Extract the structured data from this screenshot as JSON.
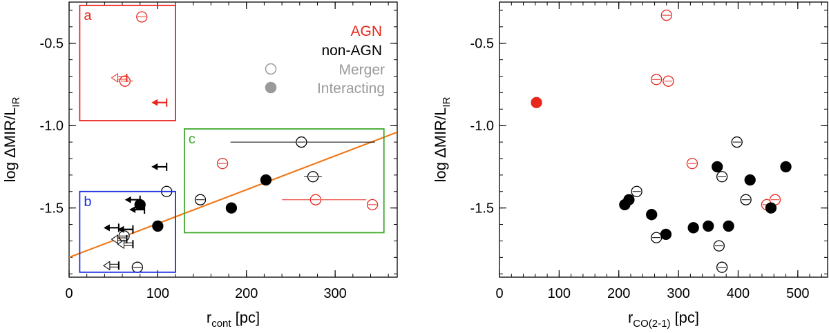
{
  "colors": {
    "agn": "#e8261c",
    "nonagn": "#000000",
    "legend_gray": "#9a9a9a",
    "fit_line": "#f07a1c",
    "box_a": "#e8261c",
    "box_b": "#1c2ee0",
    "box_c": "#3fa92b"
  },
  "chart_data": [
    {
      "type": "scatter",
      "panel": "left",
      "xlabel": {
        "main": "r",
        "sub": "cont",
        "unit": " [pc]"
      },
      "ylabel": {
        "main": "log ΔMIR/L",
        "sub": "IR"
      },
      "xlim": [
        0,
        370
      ],
      "ylim": [
        -1.92,
        -0.25
      ],
      "xticks": [
        0,
        100,
        200,
        300
      ],
      "xtick_labels": [
        "0",
        "100",
        "200",
        "300"
      ],
      "yticks": [
        -0.5,
        -1.0,
        -1.5
      ],
      "ytick_labels": [
        "-0.5",
        "-1.0",
        "-1.5"
      ],
      "legend": {
        "agn_label": "AGN",
        "nonagn_label": "non-AGN",
        "merger_label": "Merger",
        "interacting_label": "Interacting"
      },
      "fit_line": {
        "x": [
          0,
          370
        ],
        "y": [
          -1.8,
          -1.04
        ]
      },
      "boxes": [
        {
          "label": "a",
          "x": [
            12,
            120
          ],
          "y": [
            -0.97,
            -0.27
          ],
          "color": "box_a"
        },
        {
          "label": "b",
          "x": [
            12,
            120
          ],
          "y": [
            -1.89,
            -1.4
          ],
          "color": "box_b"
        },
        {
          "label": "c",
          "x": [
            130,
            355
          ],
          "y": [
            -1.65,
            -1.02
          ],
          "color": "box_c"
        }
      ],
      "points": [
        {
          "x": 82,
          "y": -0.34,
          "group": "agn",
          "kind": "merger"
        },
        {
          "x": 63,
          "y": -0.73,
          "group": "agn",
          "kind": "merger",
          "xerr": [
            55,
            72
          ]
        },
        {
          "x": 173,
          "y": -1.23,
          "group": "agn",
          "kind": "merger"
        },
        {
          "x": 278,
          "y": -1.45,
          "group": "agn",
          "kind": "merger",
          "xerr": [
            240,
            335
          ]
        },
        {
          "x": 342,
          "y": -1.48,
          "group": "agn",
          "kind": "merger"
        },
        {
          "x": 262,
          "y": -1.1,
          "group": "nonagn",
          "kind": "merger",
          "xerr": [
            182,
            345
          ]
        },
        {
          "x": 275,
          "y": -1.31,
          "group": "nonagn",
          "kind": "merger",
          "xerr": [
            265,
            285
          ]
        },
        {
          "x": 148,
          "y": -1.45,
          "group": "nonagn",
          "kind": "merger"
        },
        {
          "x": 110,
          "y": -1.4,
          "group": "nonagn",
          "kind": "merger"
        },
        {
          "x": 62,
          "y": -1.67,
          "group": "nonagn",
          "kind": "merger"
        },
        {
          "x": 77,
          "y": -1.86,
          "group": "nonagn",
          "kind": "merger"
        },
        {
          "x": 222,
          "y": -1.33,
          "group": "nonagn",
          "kind": "interacting"
        },
        {
          "x": 183,
          "y": -1.5,
          "group": "nonagn",
          "kind": "interacting"
        },
        {
          "x": 80,
          "y": -1.48,
          "group": "nonagn",
          "kind": "interacting"
        },
        {
          "x": 100,
          "y": -1.61,
          "group": "nonagn",
          "kind": "interacting"
        }
      ],
      "upper_limits": [
        {
          "x": 110,
          "y": -0.86,
          "group": "agn",
          "kind": "interacting"
        },
        {
          "x": 65,
          "y": -0.71,
          "group": "agn",
          "kind": "merger"
        },
        {
          "x": 110,
          "y": -1.25,
          "group": "nonagn",
          "kind": "interacting"
        },
        {
          "x": 80,
          "y": -1.45,
          "group": "nonagn",
          "kind": "interacting"
        },
        {
          "x": 85,
          "y": -1.51,
          "group": "nonagn",
          "kind": "interacting"
        },
        {
          "x": 56,
          "y": -1.62,
          "group": "nonagn",
          "kind": "interacting"
        },
        {
          "x": 72,
          "y": -1.63,
          "group": "nonagn",
          "kind": "interacting"
        },
        {
          "x": 65,
          "y": -1.69,
          "group": "nonagn",
          "kind": "merger"
        },
        {
          "x": 72,
          "y": -1.72,
          "group": "nonagn",
          "kind": "merger"
        },
        {
          "x": 56,
          "y": -1.85,
          "group": "nonagn",
          "kind": "merger"
        }
      ]
    },
    {
      "type": "scatter",
      "panel": "right",
      "xlabel": {
        "main": "r",
        "sub": "CO(2-1)",
        "unit": " [pc]"
      },
      "ylabel": {
        "main": "log ΔMIR/L",
        "sub": "IR"
      },
      "xlim": [
        0,
        550
      ],
      "ylim": [
        -1.92,
        -0.25
      ],
      "xticks": [
        0,
        100,
        200,
        300,
        400,
        500
      ],
      "xtick_labels": [
        "0",
        "100",
        "200",
        "300",
        "400",
        "500"
      ],
      "yticks": [
        -0.5,
        -1.0,
        -1.5
      ],
      "ytick_labels": [
        "-0.5",
        "-1.0",
        "-1.5"
      ],
      "points": [
        {
          "x": 62,
          "y": -0.86,
          "group": "agn",
          "kind": "interacting"
        },
        {
          "x": 280,
          "y": -0.33,
          "group": "agn",
          "kind": "merger"
        },
        {
          "x": 263,
          "y": -0.72,
          "group": "agn",
          "kind": "merger"
        },
        {
          "x": 283,
          "y": -0.73,
          "group": "agn",
          "kind": "merger"
        },
        {
          "x": 323,
          "y": -1.23,
          "group": "agn",
          "kind": "merger"
        },
        {
          "x": 448,
          "y": -1.48,
          "group": "agn",
          "kind": "merger"
        },
        {
          "x": 462,
          "y": -1.45,
          "group": "agn",
          "kind": "merger"
        },
        {
          "x": 398,
          "y": -1.1,
          "group": "nonagn",
          "kind": "merger"
        },
        {
          "x": 373,
          "y": -1.31,
          "group": "nonagn",
          "kind": "merger"
        },
        {
          "x": 413,
          "y": -1.45,
          "group": "nonagn",
          "kind": "merger"
        },
        {
          "x": 230,
          "y": -1.4,
          "group": "nonagn",
          "kind": "merger"
        },
        {
          "x": 263,
          "y": -1.68,
          "group": "nonagn",
          "kind": "merger"
        },
        {
          "x": 368,
          "y": -1.73,
          "group": "nonagn",
          "kind": "merger"
        },
        {
          "x": 373,
          "y": -1.86,
          "group": "nonagn",
          "kind": "merger"
        },
        {
          "x": 210,
          "y": -1.48,
          "group": "nonagn",
          "kind": "interacting"
        },
        {
          "x": 217,
          "y": -1.45,
          "group": "nonagn",
          "kind": "interacting"
        },
        {
          "x": 255,
          "y": -1.54,
          "group": "nonagn",
          "kind": "interacting"
        },
        {
          "x": 279,
          "y": -1.66,
          "group": "nonagn",
          "kind": "interacting"
        },
        {
          "x": 325,
          "y": -1.62,
          "group": "nonagn",
          "kind": "interacting"
        },
        {
          "x": 350,
          "y": -1.61,
          "group": "nonagn",
          "kind": "interacting"
        },
        {
          "x": 365,
          "y": -1.25,
          "group": "nonagn",
          "kind": "interacting"
        },
        {
          "x": 384,
          "y": -1.61,
          "group": "nonagn",
          "kind": "interacting"
        },
        {
          "x": 420,
          "y": -1.33,
          "group": "nonagn",
          "kind": "interacting"
        },
        {
          "x": 455,
          "y": -1.5,
          "group": "nonagn",
          "kind": "interacting"
        },
        {
          "x": 480,
          "y": -1.25,
          "group": "nonagn",
          "kind": "interacting"
        }
      ]
    }
  ]
}
